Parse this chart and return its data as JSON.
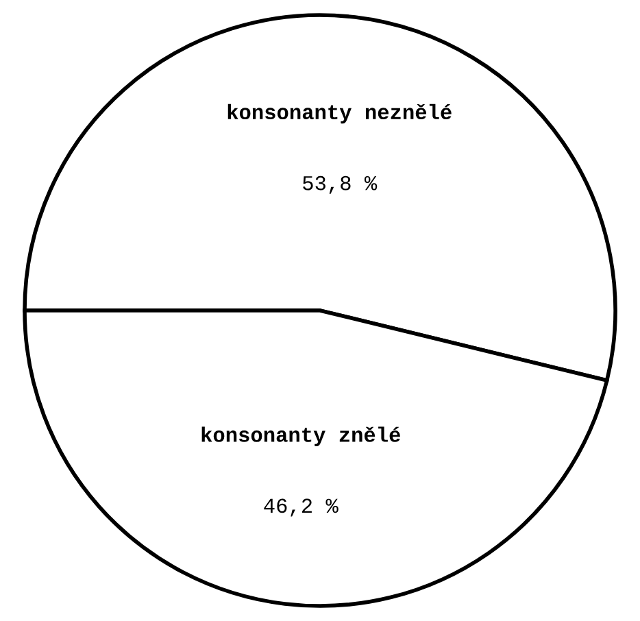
{
  "chart_data": {
    "type": "pie",
    "categories": [
      "konsonanty neznělé",
      "konsonanty znělé"
    ],
    "values": [
      53.8,
      46.2
    ],
    "value_labels": [
      "53,8 %",
      "46,2 %"
    ],
    "colors": [
      "#ffffff",
      "#ffffff"
    ],
    "legend": false
  }
}
